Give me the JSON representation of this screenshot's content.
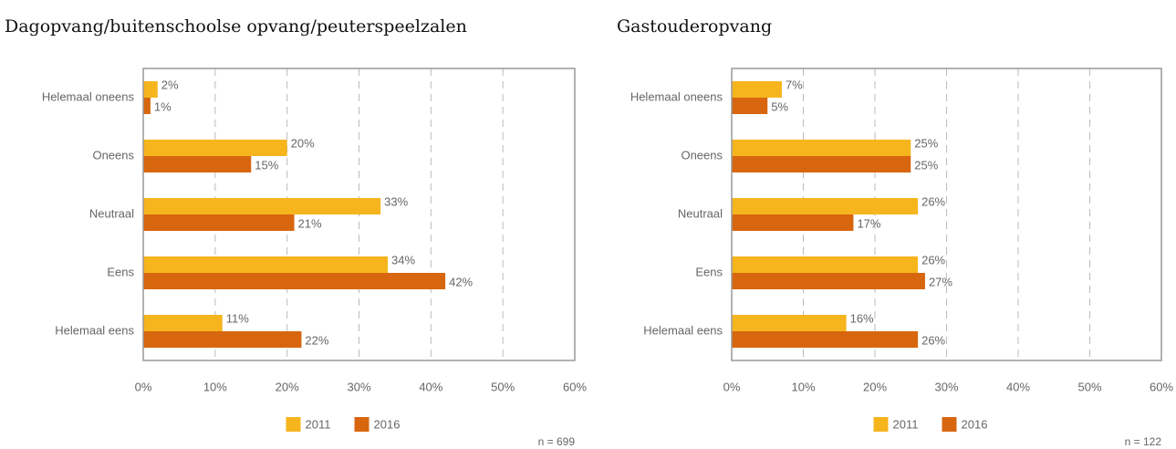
{
  "chart_data": [
    {
      "type": "bar",
      "orientation": "horizontal",
      "title": "Dagopvang/buitenschoolse opvang/peuterspeelzalen",
      "categories": [
        "Helemaal oneens",
        "Oneens",
        "Neutraal",
        "Eens",
        "Helemaal eens"
      ],
      "series": [
        {
          "name": "2011",
          "color": "#f6b51d",
          "values": [
            2,
            20,
            33,
            34,
            11
          ],
          "value_labels": [
            "2%",
            "20%",
            "33%",
            "34%",
            "11%"
          ]
        },
        {
          "name": "2016",
          "color": "#d8660f",
          "values": [
            1,
            15,
            21,
            42,
            22
          ],
          "value_labels": [
            "1%",
            "15%",
            "21%",
            "42%",
            "22%"
          ]
        }
      ],
      "xlim": [
        0,
        60
      ],
      "xticks": [
        {
          "value": 0,
          "label": "0%"
        },
        {
          "value": 10,
          "label": "10%"
        },
        {
          "value": 20,
          "label": "20%"
        },
        {
          "value": 30,
          "label": "30%"
        },
        {
          "value": 40,
          "label": "40%"
        },
        {
          "value": 50,
          "label": "50%"
        },
        {
          "value": 60,
          "label": "60%"
        }
      ],
      "grid": true,
      "legend": "bottom",
      "annotation": "n = 699"
    },
    {
      "type": "bar",
      "orientation": "horizontal",
      "title": "Gastouderopvang",
      "categories": [
        "Helemaal oneens",
        "Oneens",
        "Neutraal",
        "Eens",
        "Helemaal eens"
      ],
      "series": [
        {
          "name": "2011",
          "color": "#f6b51d",
          "values": [
            7,
            25,
            26,
            26,
            16
          ],
          "value_labels": [
            "7%",
            "25%",
            "26%",
            "26%",
            "16%"
          ]
        },
        {
          "name": "2016",
          "color": "#d8660f",
          "values": [
            5,
            25,
            17,
            27,
            26
          ],
          "value_labels": [
            "5%",
            "25%",
            "17%",
            "27%",
            "26%"
          ]
        }
      ],
      "xlim": [
        0,
        60
      ],
      "xticks": [
        {
          "value": 0,
          "label": "0%"
        },
        {
          "value": 10,
          "label": "10%"
        },
        {
          "value": 20,
          "label": "20%"
        },
        {
          "value": 30,
          "label": "30%"
        },
        {
          "value": 40,
          "label": "40%"
        },
        {
          "value": 50,
          "label": "50%"
        },
        {
          "value": 60,
          "label": "60%"
        }
      ],
      "grid": true,
      "legend": "bottom",
      "annotation": "n = 122"
    }
  ]
}
